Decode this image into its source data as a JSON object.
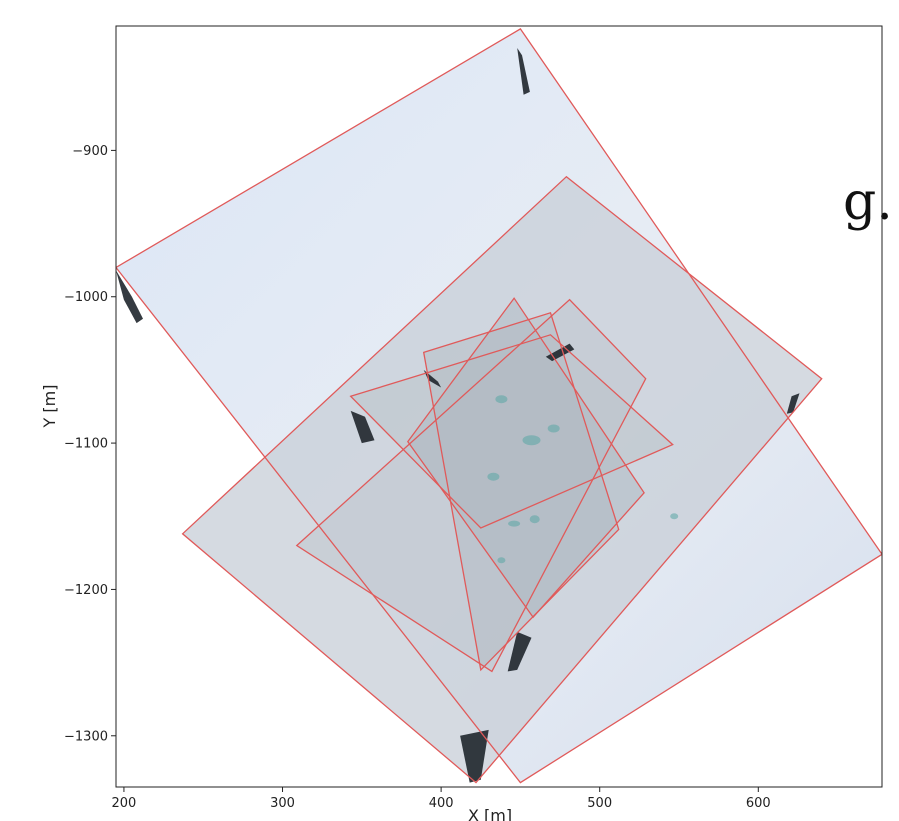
{
  "page_fragment": "g.",
  "chart_data": {
    "type": "scatter",
    "title": "",
    "xlabel": "X [m]",
    "ylabel": "Y [m]",
    "xlim": [
      195,
      678
    ],
    "ylim": [
      -1335,
      -815
    ],
    "x_ticks": [
      200,
      300,
      400,
      500,
      600
    ],
    "y_ticks": [
      -900,
      -1000,
      -1100,
      -1200,
      -1300
    ],
    "x_tick_labels": [
      "200",
      "300",
      "400",
      "500",
      "600"
    ],
    "y_tick_labels": [
      "−900",
      "−1000",
      "−1100",
      "−1200",
      "−1300"
    ],
    "grid": false,
    "legend": "none",
    "outline_color": "#e05a5a",
    "footprints": [
      {
        "name": "",
        "corners": [
          [
            195,
            -980
          ],
          [
            450,
            -817
          ],
          [
            678,
            -1176
          ],
          [
            450,
            -1332
          ]
        ]
      },
      {
        "name": "",
        "corners": [
          [
            237,
            -1162
          ],
          [
            479,
            -918
          ],
          [
            640,
            -1056
          ],
          [
            422,
            -1332
          ]
        ]
      },
      {
        "name": "",
        "corners": [
          [
            309,
            -1170
          ],
          [
            481,
            -1002
          ],
          [
            529,
            -1056
          ],
          [
            432,
            -1256
          ]
        ]
      },
      {
        "name": "",
        "corners": [
          [
            343,
            -1068
          ],
          [
            469,
            -1026
          ],
          [
            546,
            -1101
          ],
          [
            425,
            -1158
          ]
        ]
      },
      {
        "name": "",
        "corners": [
          [
            389,
            -1038
          ],
          [
            469,
            -1011
          ],
          [
            512,
            -1159
          ],
          [
            425,
            -1255
          ]
        ]
      },
      {
        "name": "",
        "corners": [
          [
            379,
            -1099
          ],
          [
            446,
            -1001
          ],
          [
            528,
            -1134
          ],
          [
            458,
            -1219
          ]
        ]
      }
    ]
  }
}
